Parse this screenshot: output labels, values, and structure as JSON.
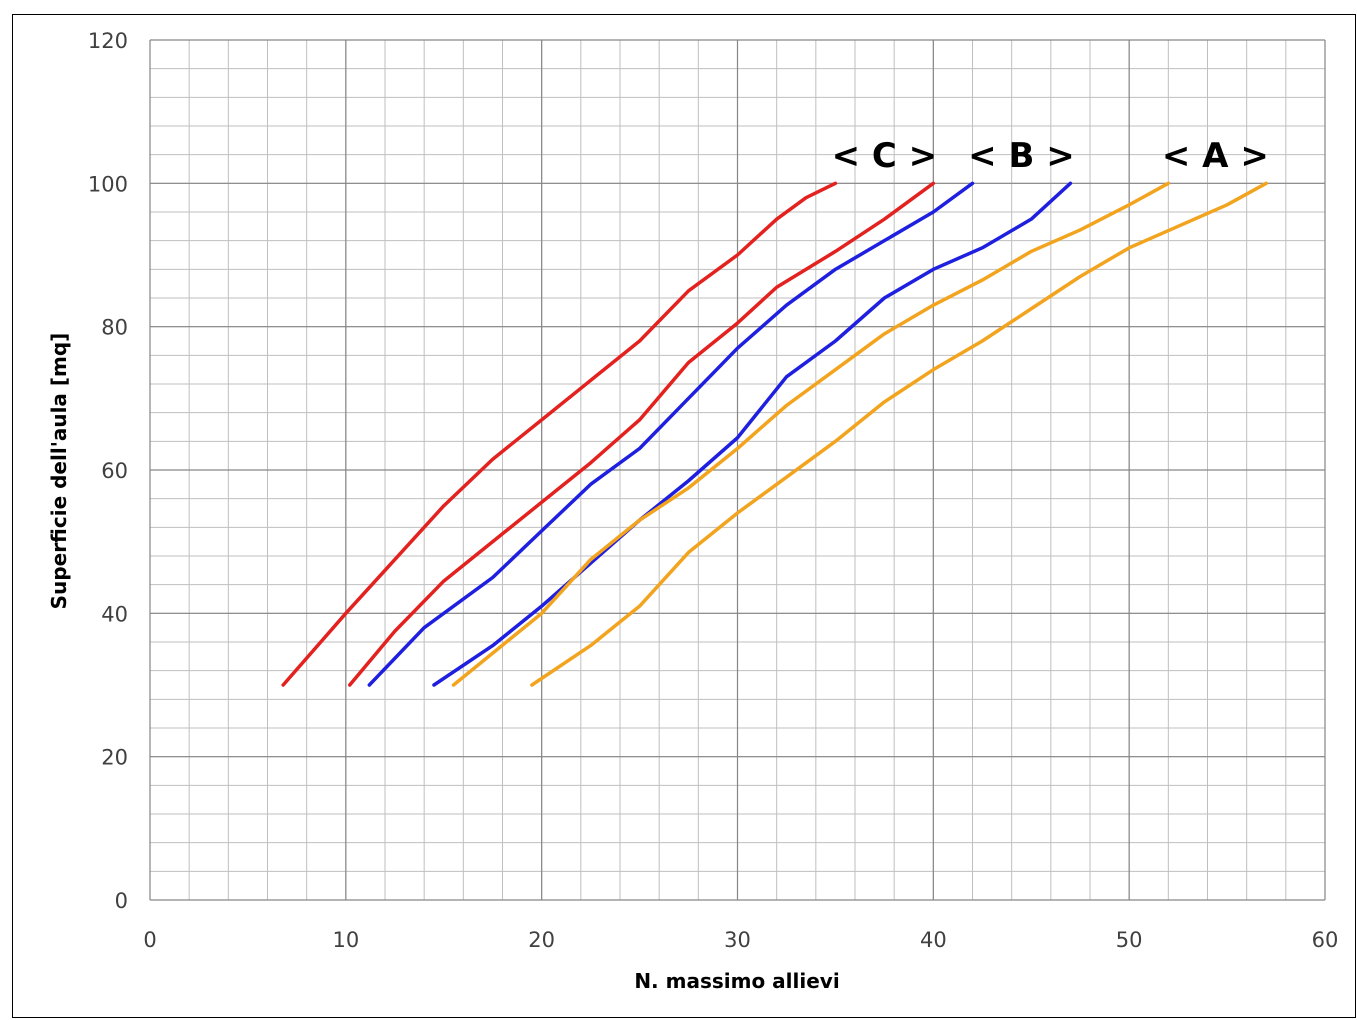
{
  "chart_data": {
    "type": "line",
    "title": "",
    "xlabel": "N. massimo allievi",
    "ylabel": "Superficie dell'aula [mq]",
    "xlim": [
      0,
      60
    ],
    "ylim": [
      0,
      120
    ],
    "x_ticks": [
      0,
      10,
      20,
      30,
      40,
      50,
      60
    ],
    "y_ticks": [
      0,
      20,
      40,
      60,
      80,
      100,
      120
    ],
    "x_minor_step": 2,
    "y_minor_step": 4,
    "grid": true,
    "legend": "none",
    "group_labels": [
      {
        "text": "< C >",
        "x": 37.5,
        "y": 102.3
      },
      {
        "text": "< B >",
        "x": 44.5,
        "y": 102.3
      },
      {
        "text": "< A >",
        "x": 54.4,
        "y": 102.3
      }
    ],
    "series": [
      {
        "group": "C",
        "color": "#e3221f",
        "points": [
          [
            6.8,
            30
          ],
          [
            10,
            40
          ],
          [
            12.5,
            47.5
          ],
          [
            15,
            55
          ],
          [
            17.5,
            61.5
          ],
          [
            20,
            67
          ],
          [
            22.5,
            72.5
          ],
          [
            25,
            78
          ],
          [
            27.5,
            85
          ],
          [
            30,
            90
          ],
          [
            32,
            95
          ],
          [
            33.5,
            98
          ],
          [
            35,
            100
          ]
        ]
      },
      {
        "group": "C",
        "color": "#e3221f",
        "points": [
          [
            10.2,
            30
          ],
          [
            12.5,
            37.5
          ],
          [
            15,
            44.5
          ],
          [
            17.5,
            50
          ],
          [
            20,
            55.5
          ],
          [
            22.5,
            61
          ],
          [
            25,
            67
          ],
          [
            27.5,
            75
          ],
          [
            30,
            80.5
          ],
          [
            32,
            85.5
          ],
          [
            35,
            90.5
          ],
          [
            37.5,
            95
          ],
          [
            40,
            100
          ]
        ]
      },
      {
        "group": "B",
        "color": "#1f1fe0",
        "points": [
          [
            11.2,
            30
          ],
          [
            14,
            38
          ],
          [
            17.5,
            45
          ],
          [
            20,
            51.5
          ],
          [
            22.5,
            58
          ],
          [
            25,
            63
          ],
          [
            27.5,
            70
          ],
          [
            30,
            77
          ],
          [
            32.5,
            83
          ],
          [
            35,
            88
          ],
          [
            37.5,
            92
          ],
          [
            40,
            96
          ],
          [
            42,
            100
          ]
        ]
      },
      {
        "group": "B",
        "color": "#1f1fe0",
        "points": [
          [
            14.5,
            30
          ],
          [
            17.5,
            35.5
          ],
          [
            20,
            41
          ],
          [
            22.5,
            47
          ],
          [
            25,
            53
          ],
          [
            27.5,
            58.5
          ],
          [
            30,
            64.5
          ],
          [
            32.5,
            73
          ],
          [
            35,
            78
          ],
          [
            37.5,
            84
          ],
          [
            40,
            88
          ],
          [
            42.5,
            91
          ],
          [
            45,
            95
          ],
          [
            47,
            100
          ]
        ]
      },
      {
        "group": "A",
        "color": "#f2a41e",
        "points": [
          [
            15.5,
            30
          ],
          [
            20,
            40
          ],
          [
            22.5,
            47.5
          ],
          [
            25,
            53
          ],
          [
            27.5,
            57.5
          ],
          [
            30,
            63
          ],
          [
            32.5,
            69
          ],
          [
            35,
            74
          ],
          [
            37.5,
            79
          ],
          [
            40,
            83
          ],
          [
            42.5,
            86.5
          ],
          [
            45,
            90.5
          ],
          [
            47.5,
            93.5
          ],
          [
            50,
            97
          ],
          [
            52,
            100
          ]
        ]
      },
      {
        "group": "A",
        "color": "#f2a41e",
        "points": [
          [
            19.5,
            30
          ],
          [
            22.5,
            35.5
          ],
          [
            25,
            41
          ],
          [
            27.5,
            48.5
          ],
          [
            30,
            54
          ],
          [
            32.5,
            59
          ],
          [
            35,
            64
          ],
          [
            37.5,
            69.5
          ],
          [
            40,
            74
          ],
          [
            42.5,
            78
          ],
          [
            45,
            82.5
          ],
          [
            47.5,
            87
          ],
          [
            50,
            91
          ],
          [
            52.5,
            94
          ],
          [
            55,
            97
          ],
          [
            57,
            100
          ]
        ]
      }
    ]
  }
}
